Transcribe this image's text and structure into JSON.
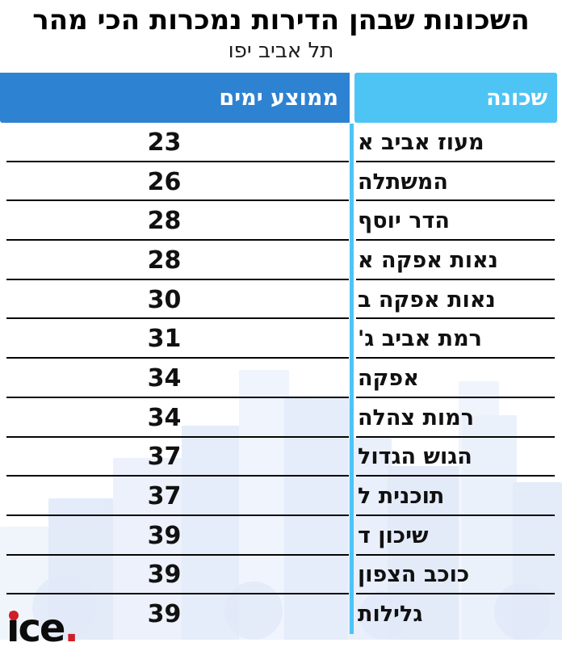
{
  "chart_data": {
    "type": "table",
    "title": "השכונות שבהן הדירות נמכרות הכי מהר",
    "subtitle": "תל אביב יפו",
    "columns": [
      {
        "key": "days",
        "label": "ממוצע ימים"
      },
      {
        "key": "neighborhood",
        "label": "שכונה"
      }
    ],
    "rows": [
      {
        "neighborhood": "מעוז אביב א",
        "days": 23
      },
      {
        "neighborhood": "המשתלה",
        "days": 26
      },
      {
        "neighborhood": "הדר יוסף",
        "days": 28
      },
      {
        "neighborhood": "נאות אפקה א",
        "days": 28
      },
      {
        "neighborhood": "נאות אפקה ב",
        "days": 30
      },
      {
        "neighborhood": "רמת אביב ג'",
        "days": 31
      },
      {
        "neighborhood": "אפקה",
        "days": 34
      },
      {
        "neighborhood": "רמות צהלה",
        "days": 34
      },
      {
        "neighborhood": "הגוש הגדול",
        "days": 37
      },
      {
        "neighborhood": "תוכנית ל",
        "days": 37
      },
      {
        "neighborhood": "שיכון ד",
        "days": 39
      },
      {
        "neighborhood": "כוכב הצפון",
        "days": 39
      },
      {
        "neighborhood": "גלילות",
        "days": 39
      }
    ],
    "values": [
      23,
      26,
      28,
      28,
      30,
      31,
      34,
      34,
      37,
      37,
      39,
      39,
      39
    ],
    "layout": {
      "direction": "rtl",
      "value_column_side": "left",
      "name_column_side": "right"
    }
  },
  "branding": {
    "logo_letters": "ice",
    "logo_period": "."
  },
  "colors": {
    "header_days_bg": "#2e82d2",
    "header_neighborhood_bg": "#4ec4f4",
    "column_divider": "#4ec4f4",
    "row_separator": "#050505",
    "logo_accent_red": "#d01f26",
    "watermark_blue": "#cddcf7"
  }
}
